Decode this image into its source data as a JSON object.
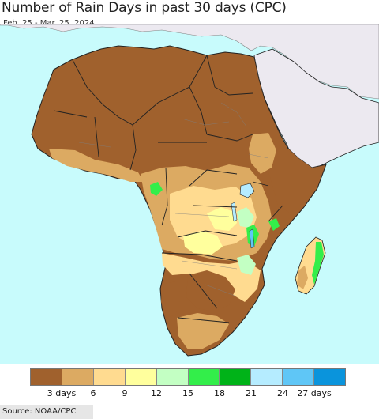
{
  "title": "Number of Rain Days in past 30 days (CPC)",
  "date_range": "Feb. 25 - Mar. 25, 2024",
  "source": "Source: NOAA/CPC",
  "colors": {
    "ocean": "#c8fbfc",
    "non_africa_land": "#ece9f0",
    "border": "#222222",
    "admin_border": "#7f7f7f"
  },
  "legend": {
    "colors": [
      "#a0612d",
      "#dcaa62",
      "#ffdb90",
      "#ffff9d",
      "#c3ffc3",
      "#33ee4a",
      "#00b318",
      "#b5ecff",
      "#5fc6f6",
      "#0a94dc"
    ],
    "ticks": [
      "3 days",
      "6",
      "9",
      "12",
      "15",
      "18",
      "21",
      "24",
      "27 days"
    ]
  }
}
